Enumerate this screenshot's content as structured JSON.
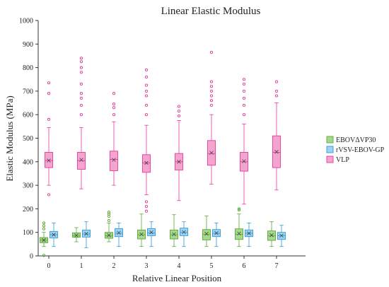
{
  "chart_data": {
    "type": "box",
    "title": "Linear Elastic Modulus",
    "xlabel": "Relative Linear Position",
    "ylabel": "Elastic Modulus (MPa)",
    "ylim": [
      0,
      1000
    ],
    "yticks": [
      "0",
      "100",
      "200",
      "300",
      "400",
      "500",
      "600",
      "700",
      "800",
      "900",
      "1000"
    ],
    "categories": [
      "0",
      "1",
      "2",
      "3",
      "4",
      "5",
      "6",
      "7"
    ],
    "grid": false,
    "legend_position": "right",
    "series": [
      {
        "name": "EBOVΔVP30",
        "color": "#5aa832",
        "fill": "#a6d98f",
        "boxes": [
          {
            "q1": 56,
            "median": 67,
            "q3": 78,
            "mean": 67,
            "whislo": 40,
            "whishi": 100,
            "outliers": [
              2,
              115,
              128,
              140
            ]
          },
          {
            "q1": 79,
            "median": 87,
            "q3": 98,
            "mean": 87,
            "whislo": 60,
            "whishi": 120,
            "outliers": []
          },
          {
            "q1": 75,
            "median": 86,
            "q3": 100,
            "mean": 88,
            "whislo": 60,
            "whishi": 140,
            "outliers": [
              150,
              168,
              178,
              186
            ]
          },
          {
            "q1": 72,
            "median": 90,
            "q3": 110,
            "mean": 92,
            "whislo": 40,
            "whishi": 178,
            "outliers": []
          },
          {
            "q1": 72,
            "median": 90,
            "q3": 110,
            "mean": 92,
            "whislo": 40,
            "whishi": 175,
            "outliers": []
          },
          {
            "q1": 68,
            "median": 92,
            "q3": 112,
            "mean": 94,
            "whislo": 40,
            "whishi": 170,
            "outliers": []
          },
          {
            "q1": 70,
            "median": 92,
            "q3": 115,
            "mean": 95,
            "whislo": 40,
            "whishi": 178,
            "outliers": [
              195,
              200
            ]
          },
          {
            "q1": 66,
            "median": 86,
            "q3": 106,
            "mean": 88,
            "whislo": 40,
            "whishi": 145,
            "outliers": []
          }
        ]
      },
      {
        "name": "rVSV-EBOV-GP",
        "color": "#2e9ad6",
        "fill": "#9fd3f2",
        "boxes": [
          {
            "q1": 76,
            "median": 90,
            "q3": 104,
            "mean": 90,
            "whislo": 40,
            "whishi": 140,
            "outliers": []
          },
          {
            "q1": 80,
            "median": 93,
            "q3": 110,
            "mean": 94,
            "whislo": 35,
            "whishi": 145,
            "outliers": []
          },
          {
            "q1": 82,
            "median": 96,
            "q3": 116,
            "mean": 98,
            "whislo": 40,
            "whishi": 140,
            "outliers": []
          },
          {
            "q1": 86,
            "median": 98,
            "q3": 116,
            "mean": 100,
            "whislo": 40,
            "whishi": 145,
            "outliers": []
          },
          {
            "q1": 86,
            "median": 100,
            "q3": 118,
            "mean": 101,
            "whislo": 40,
            "whishi": 145,
            "outliers": []
          },
          {
            "q1": 82,
            "median": 96,
            "q3": 112,
            "mean": 97,
            "whislo": 40,
            "whishi": 140,
            "outliers": []
          },
          {
            "q1": 82,
            "median": 96,
            "q3": 110,
            "mean": 96,
            "whislo": 40,
            "whishi": 140,
            "outliers": []
          },
          {
            "q1": 70,
            "median": 86,
            "q3": 100,
            "mean": 86,
            "whislo": 40,
            "whishi": 130,
            "outliers": []
          }
        ]
      },
      {
        "name": "VLP",
        "color": "#e6399b",
        "fill": "#f5a3cf",
        "boxes": [
          {
            "q1": 375,
            "median": 405,
            "q3": 440,
            "mean": 405,
            "whislo": 300,
            "whishi": 545,
            "outliers": [
              260,
              580,
              690,
              735
            ]
          },
          {
            "q1": 368,
            "median": 405,
            "q3": 440,
            "mean": 408,
            "whislo": 285,
            "whishi": 545,
            "outliers": [
              600,
              640,
              670,
              690,
              730,
              780,
              800,
              825,
              840
            ]
          },
          {
            "q1": 362,
            "median": 410,
            "q3": 445,
            "mean": 408,
            "whislo": 300,
            "whishi": 570,
            "outliers": [
              600,
              630,
              645,
              690
            ]
          },
          {
            "q1": 355,
            "median": 395,
            "q3": 430,
            "mean": 395,
            "whislo": 260,
            "whishi": 555,
            "outliers": [
              190,
              210,
              230,
              600,
              640,
              680,
              700,
              725,
              760,
              790
            ]
          },
          {
            "q1": 365,
            "median": 400,
            "q3": 435,
            "mean": 400,
            "whislo": 235,
            "whishi": 575,
            "outliers": [
              595,
              615,
              635
            ]
          },
          {
            "q1": 385,
            "median": 435,
            "q3": 490,
            "mean": 438,
            "whislo": 305,
            "whishi": 600,
            "outliers": [
              640,
              660,
              680,
              700,
              720,
              740,
              865
            ]
          },
          {
            "q1": 360,
            "median": 400,
            "q3": 440,
            "mean": 402,
            "whislo": 220,
            "whishi": 560,
            "outliers": [
              600,
              640,
              670,
              700,
              730,
              750
            ]
          },
          {
            "q1": 375,
            "median": 440,
            "q3": 510,
            "mean": 442,
            "whislo": 280,
            "whishi": 650,
            "outliers": [
              680,
              700,
              740
            ]
          }
        ]
      }
    ]
  }
}
